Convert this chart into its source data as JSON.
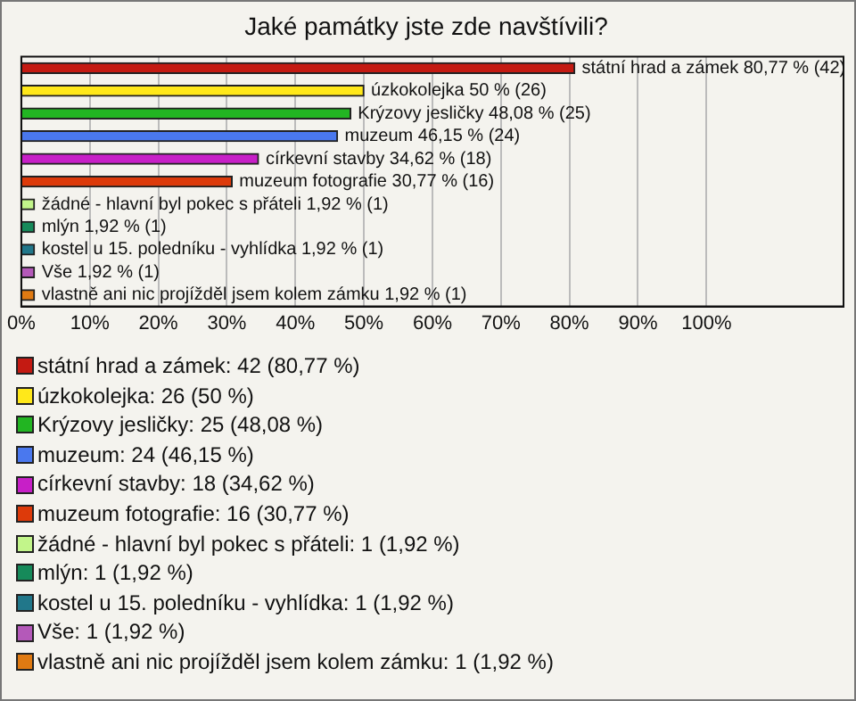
{
  "chart_data": {
    "type": "bar",
    "orientation": "horizontal",
    "title": "Jaké památky jste zde navštívili?",
    "categories": [
      null,
      null,
      null,
      null,
      null,
      null,
      null,
      null,
      null,
      null,
      null
    ],
    "values": [
      80.77,
      50,
      48.08,
      46.15,
      34.62,
      30.77,
      1.92,
      1.92,
      1.92,
      1.92,
      1.92
    ],
    "colors": [
      "#c41a12",
      "#ffe81a",
      "#22b522",
      "#4a78ee",
      "#c71fc7",
      "#dd3a0a",
      "#c2f58a",
      "#168a5a",
      "#21778a",
      "#b459b9",
      "#e07a12"
    ],
    "value_labels": [
      "státní hrad a zámek 80,77 % (42)",
      "úzkokolejka 50 % (26)",
      "Krýzovy jesličky 48,08 % (25)",
      "muzeum 46,15 % (24)",
      "církevní stavby 34,62 % (18)",
      "muzeum fotografie 30,77 % (16)",
      "žádné - hlavní byl pokec s přáteli 1,92 % (1)",
      "mlýn 1,92 % (1)",
      "kostel u 15. poledníku - vyhlídka 1,92 % (1)",
      "Vše 1,92 % (1)",
      "vlastně ani nic projížděl jsem kolem zámku 1,92 % (1)"
    ],
    "annotations": [
      "státní hrad a zámek: 42 (80,77 %)",
      "úzkokolejka: 26 (50 %)",
      "Krýzovy jesličky: 25 (48,08 %)",
      "muzeum: 24 (46,15 %)",
      "církevní stavby: 18 (34,62 %)",
      "muzeum fotografie: 16 (30,77 %)",
      "žádné - hlavní byl pokec s přáteli: 1 (1,92 %)",
      "mlýn: 1 (1,92 %)",
      "kostel u 15. poledníku - vyhlídka: 1 (1,92 %)",
      "Vše: 1 (1,92 %)",
      "vlastně ani nic projížděl jsem kolem zámku: 1 (1,92 %)"
    ],
    "xlim": [
      0,
      120
    ],
    "xticks": [
      {
        "value": 0,
        "label": "0%"
      },
      {
        "value": 10,
        "label": "10%"
      },
      {
        "value": 20,
        "label": "20%"
      },
      {
        "value": 30,
        "label": "30%"
      },
      {
        "value": 40,
        "label": "40%"
      },
      {
        "value": 50,
        "label": "50%"
      },
      {
        "value": 60,
        "label": "60%"
      },
      {
        "value": 70,
        "label": "70%"
      },
      {
        "value": 80,
        "label": "80%"
      },
      {
        "value": 90,
        "label": "90%"
      },
      {
        "value": 100,
        "label": "100%"
      }
    ],
    "grid": "x",
    "tick_labels": "x"
  }
}
